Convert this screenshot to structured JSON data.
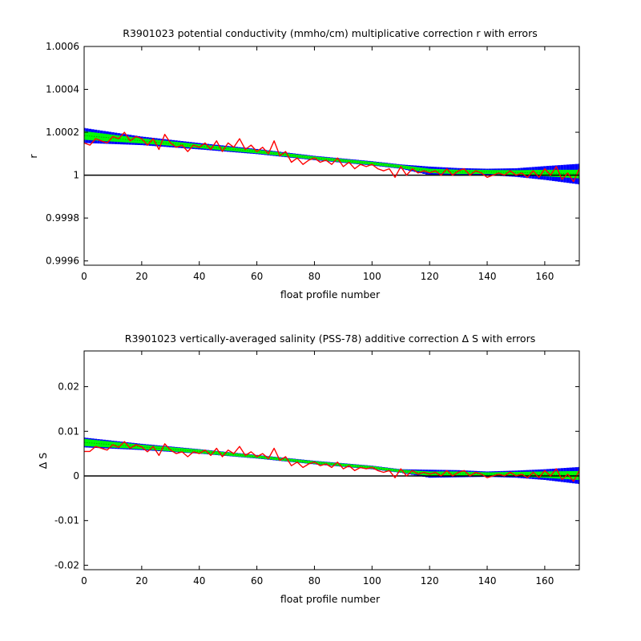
{
  "chart_data": [
    {
      "type": "line",
      "title": "R3901023 potential conductivity (mmho/cm) multiplicative correction r with errors",
      "xlabel": "float profile number",
      "ylabel": "r",
      "xlim": [
        0,
        172
      ],
      "ylim": [
        0.99958,
        1.0006
      ],
      "xticks": [
        0,
        20,
        40,
        60,
        80,
        100,
        120,
        140,
        160
      ],
      "xtick_labels": [
        "0",
        "20",
        "40",
        "60",
        "80",
        "100",
        "120",
        "140",
        "160"
      ],
      "yticks": [
        0.9996,
        0.9998,
        1.0,
        1.0002,
        1.0004,
        1.0006
      ],
      "ytick_labels": [
        "0.9996",
        "0.9998",
        "1",
        "1.0002",
        "1.0004",
        "1.0006"
      ],
      "reference_line": 1.0,
      "grid": false,
      "colors": {
        "envelope_outer": "#0000ff",
        "envelope_inner": "#00ff00",
        "fit_center": "#00aa00",
        "profile": "#ff0000",
        "reference": "#000000"
      },
      "series": [
        {
          "role": "fit",
          "x": [
            0,
            20,
            40,
            60,
            80,
            100,
            110,
            120,
            130,
            140,
            150,
            160,
            172
          ],
          "values": [
            1.000185,
            1.00016,
            1.000135,
            1.00011,
            1.00008,
            1.000055,
            1.00004,
            1.00002,
            1.000015,
            1.000015,
            1.000012,
            1.00001,
            1.000005
          ]
        },
        {
          "role": "error_outer",
          "x": [
            0,
            20,
            40,
            60,
            80,
            100,
            110,
            120,
            130,
            140,
            150,
            160,
            172
          ],
          "values": [
            3.5e-05,
            2e-05,
            1.5e-05,
            1.2e-05,
            1e-05,
            1e-05,
            1e-05,
            2e-05,
            1.8e-05,
            1.5e-05,
            2e-05,
            3.2e-05,
            4.8e-05
          ]
        },
        {
          "role": "error_inner",
          "x": [
            0,
            20,
            40,
            60,
            80,
            100,
            110,
            120,
            130,
            140,
            150,
            160,
            172
          ],
          "values": [
            2e-05,
            1.2e-05,
            9e-06,
            8e-06,
            7e-06,
            7e-06,
            7e-06,
            1e-05,
            1e-05,
            9e-06,
            1.1e-05,
            1.5e-05,
            2e-05
          ]
        },
        {
          "role": "profile",
          "x": [
            0,
            2,
            4,
            6,
            8,
            10,
            12,
            14,
            16,
            18,
            20,
            22,
            24,
            26,
            28,
            30,
            32,
            34,
            36,
            38,
            40,
            42,
            44,
            46,
            48,
            50,
            52,
            54,
            56,
            58,
            60,
            62,
            64,
            66,
            68,
            70,
            72,
            74,
            76,
            78,
            80,
            82,
            84,
            86,
            88,
            90,
            92,
            94,
            96,
            98,
            100,
            102,
            104,
            106,
            108,
            110,
            112,
            114,
            116,
            118,
            120,
            122,
            124,
            126,
            128,
            130,
            132,
            134,
            136,
            138,
            140,
            142,
            144,
            146,
            148,
            150,
            152,
            154,
            156,
            158,
            160,
            162,
            164,
            166,
            168,
            170,
            172
          ],
          "values": [
            1.00015,
            1.00014,
            1.00017,
            1.00016,
            1.00015,
            1.00018,
            1.00017,
            1.0002,
            1.00016,
            1.00018,
            1.00017,
            1.00014,
            1.00017,
            1.00012,
            1.00019,
            1.00015,
            1.00013,
            1.00014,
            1.00011,
            1.00014,
            1.00013,
            1.00015,
            1.00012,
            1.00016,
            1.00011,
            1.00015,
            1.00013,
            1.00017,
            1.00012,
            1.00014,
            1.00011,
            1.00013,
            1.0001,
            1.00016,
            1.00009,
            1.00011,
            1.00006,
            1.00008,
            1.00005,
            1.00007,
            1.00008,
            1.00006,
            1.00007,
            1.00005,
            1.00008,
            1.00004,
            1.00006,
            1.00003,
            1.00005,
            1.00004,
            1.00005,
            1.00003,
            1.00002,
            1.00003,
            0.99999,
            1.00004,
            1.0,
            1.00003,
            1.00001,
            1.00002,
            1.00001,
            1.00002,
            1.0,
            1.00003,
            1.0,
            1.00002,
            1.00003,
            1.0,
            1.00002,
            1.00001,
            0.99999,
            1.0,
            1.00001,
            1.0,
            1.00002,
            1.0,
            1.00001,
            0.99999,
            1.00002,
            0.99999,
            1.00003,
            1.0,
            1.00004,
            0.99998,
            1.00001,
            0.99997,
            1.00003
          ]
        }
      ]
    },
    {
      "type": "line",
      "title": "R3901023 vertically-averaged salinity (PSS-78) additive correction Δ S with errors",
      "xlabel": "float profile number",
      "ylabel": "Δ S",
      "xlim": [
        0,
        172
      ],
      "ylim": [
        -0.021,
        0.028
      ],
      "xticks": [
        0,
        20,
        40,
        60,
        80,
        100,
        120,
        140,
        160
      ],
      "xtick_labels": [
        "0",
        "20",
        "40",
        "60",
        "80",
        "100",
        "120",
        "140",
        "160"
      ],
      "yticks": [
        -0.02,
        -0.01,
        0,
        0.01,
        0.02
      ],
      "ytick_labels": [
        "-0.02",
        "-0.01",
        "0",
        "0.01",
        "0.02"
      ],
      "reference_line": 0,
      "grid": false,
      "colors": {
        "envelope_outer": "#0000ff",
        "envelope_inner": "#00ff00",
        "fit_center": "#00aa00",
        "profile": "#ff0000",
        "reference": "#000000"
      },
      "series": [
        {
          "role": "fit",
          "x": [
            0,
            20,
            40,
            60,
            80,
            100,
            110,
            120,
            130,
            140,
            150,
            160,
            172
          ],
          "values": [
            0.0075,
            0.0065,
            0.0055,
            0.0043,
            0.003,
            0.0019,
            0.0011,
            0.0005,
            0.0005,
            0.0004,
            0.0004,
            0.0003,
            0.0001
          ]
        },
        {
          "role": "error_outer",
          "x": [
            0,
            20,
            40,
            60,
            80,
            100,
            110,
            120,
            130,
            140,
            150,
            160,
            172
          ],
          "values": [
            0.0011,
            0.0007,
            0.0005,
            0.0004,
            0.0004,
            0.0004,
            0.0004,
            0.0009,
            0.0008,
            0.0006,
            0.0008,
            0.0012,
            0.0019
          ]
        },
        {
          "role": "error_inner",
          "x": [
            0,
            20,
            40,
            60,
            80,
            100,
            110,
            120,
            130,
            140,
            150,
            160,
            172
          ],
          "values": [
            0.0008,
            0.0005,
            0.0004,
            0.0003,
            0.0003,
            0.0003,
            0.0003,
            0.0005,
            0.0005,
            0.0004,
            0.0005,
            0.0007,
            0.001
          ]
        },
        {
          "role": "profile",
          "x": [
            0,
            2,
            4,
            6,
            8,
            10,
            12,
            14,
            16,
            18,
            20,
            22,
            24,
            26,
            28,
            30,
            32,
            34,
            36,
            38,
            40,
            42,
            44,
            46,
            48,
            50,
            52,
            54,
            56,
            58,
            60,
            62,
            64,
            66,
            68,
            70,
            72,
            74,
            76,
            78,
            80,
            82,
            84,
            86,
            88,
            90,
            92,
            94,
            96,
            98,
            100,
            102,
            104,
            106,
            108,
            110,
            112,
            114,
            116,
            118,
            120,
            122,
            124,
            126,
            128,
            130,
            132,
            134,
            136,
            138,
            140,
            142,
            144,
            146,
            148,
            150,
            152,
            154,
            156,
            158,
            160,
            162,
            164,
            166,
            168,
            170,
            172
          ],
          "values": [
            0.0055,
            0.0055,
            0.0066,
            0.0062,
            0.0058,
            0.007,
            0.0064,
            0.0077,
            0.0062,
            0.007,
            0.0065,
            0.0054,
            0.0066,
            0.0046,
            0.0072,
            0.0058,
            0.005,
            0.0054,
            0.0043,
            0.0054,
            0.005,
            0.0058,
            0.0046,
            0.0062,
            0.0043,
            0.0058,
            0.005,
            0.0066,
            0.0046,
            0.0054,
            0.0043,
            0.005,
            0.0039,
            0.0062,
            0.0035,
            0.0043,
            0.0023,
            0.0031,
            0.0019,
            0.0027,
            0.0031,
            0.0023,
            0.0027,
            0.0019,
            0.0031,
            0.0016,
            0.0023,
            0.0012,
            0.0019,
            0.0016,
            0.0019,
            0.0012,
            0.0008,
            0.0012,
            -0.0004,
            0.0016,
            0.0,
            0.0012,
            0.0004,
            0.0008,
            0.0004,
            0.0008,
            0.0,
            0.0012,
            0.0,
            0.0008,
            0.0012,
            0.0,
            0.0008,
            0.0004,
            -0.0004,
            0.0,
            0.0004,
            0.0,
            0.0008,
            0.0,
            0.0004,
            -0.0004,
            0.0008,
            -0.0004,
            0.0012,
            0.0,
            0.0016,
            -0.0008,
            0.0004,
            -0.0012,
            0.0012
          ]
        }
      ]
    }
  ]
}
